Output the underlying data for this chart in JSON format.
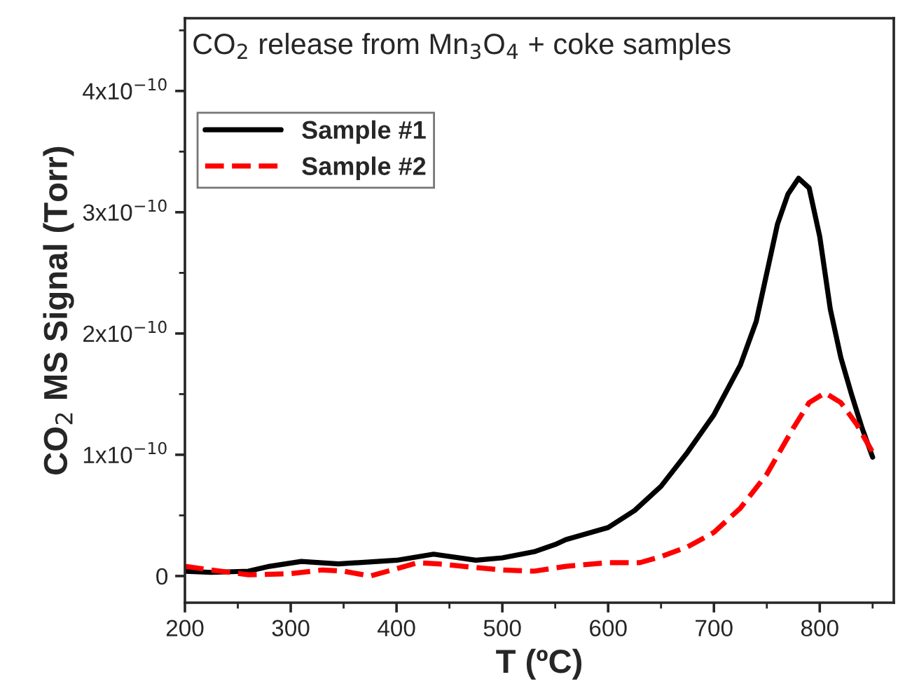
{
  "chart_data": {
    "type": "line",
    "title": "CO$_{2}$ release from Mn$_{3}$O$_{4}$ + coke samples",
    "xlabel": "T (ºC)",
    "ylabel": "CO$_{2}$ MS Signal (Torr)",
    "xlim": [
      200,
      870
    ],
    "xticks": [
      200,
      300,
      400,
      500,
      600,
      700,
      800
    ],
    "ylim": [
      -2.2e-11,
      4.6e-10
    ],
    "yticks": [
      {
        "value": 0,
        "label": "0"
      },
      {
        "value": 1e-10,
        "label": "1x10$^{−10}$"
      },
      {
        "value": 2e-10,
        "label": "2x10$^{−10}$"
      },
      {
        "value": 3e-10,
        "label": "3x10$^{−10}$"
      },
      {
        "value": 4e-10,
        "label": "4x10$^{−10}$"
      }
    ],
    "legend": "upper left",
    "grid": false,
    "series": [
      {
        "name": "Sample #1",
        "color": "#000000",
        "line_style": "solid",
        "x": [
          200,
          225,
          260,
          280,
          310,
          345,
          400,
          435,
          475,
          500,
          530,
          550,
          560,
          600,
          625,
          650,
          675,
          700,
          725,
          740,
          760,
          770,
          780,
          790,
          800,
          810,
          820,
          830,
          840,
          850
        ],
        "values": [
          4e-12,
          3e-12,
          4e-12,
          8e-12,
          1.2e-11,
          1e-11,
          1.3e-11,
          1.8e-11,
          1.3e-11,
          1.5e-11,
          2e-11,
          2.6e-11,
          3e-11,
          4e-11,
          5.4e-11,
          7.4e-11,
          1.02e-10,
          1.33e-10,
          1.74e-10,
          2.1e-10,
          2.9e-10,
          3.15e-10,
          3.28e-10,
          3.2e-10,
          2.8e-10,
          2.2e-10,
          1.8e-10,
          1.5e-10,
          1.22e-10,
          9.8e-11
        ]
      },
      {
        "name": "Sample #2",
        "color": "#ff0000",
        "line_style": "dashed",
        "x": [
          200,
          225,
          260,
          300,
          330,
          350,
          375,
          400,
          420,
          440,
          475,
          500,
          530,
          560,
          600,
          630,
          650,
          675,
          700,
          725,
          750,
          775,
          790,
          805,
          820,
          835,
          850
        ],
        "values": [
          8e-12,
          5e-12,
          1e-12,
          2e-12,
          5e-12,
          4e-12,
          0.0,
          6e-12,
          1.1e-11,
          1e-11,
          7e-12,
          5e-12,
          4e-12,
          8e-12,
          1.1e-11,
          1.1e-11,
          1.6e-11,
          2.4e-11,
          3.6e-11,
          5.6e-11,
          8.4e-11,
          1.22e-10,
          1.43e-10,
          1.51e-10,
          1.43e-10,
          1.25e-10,
          1.02e-10
        ]
      }
    ]
  }
}
